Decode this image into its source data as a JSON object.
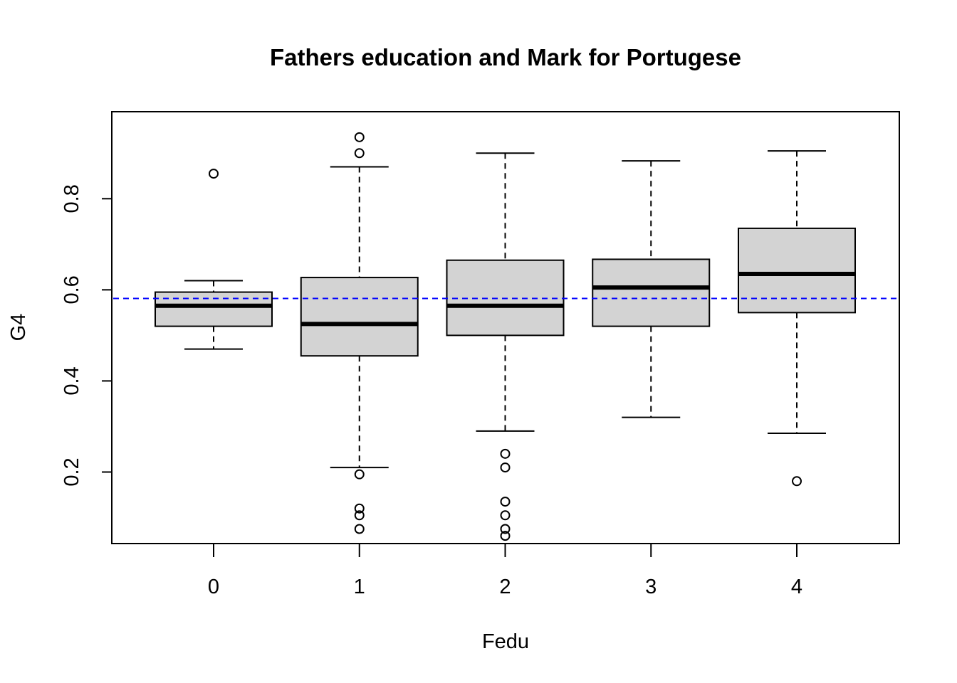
{
  "chart_data": {
    "type": "boxplot",
    "title": "Fathers education and Mark for Portugese",
    "xlabel": "Fedu",
    "ylabel": "G4",
    "categories": [
      "0",
      "1",
      "2",
      "3",
      "4"
    ],
    "y_ticks": [
      0.2,
      0.4,
      0.6,
      0.8
    ],
    "y_tick_labels": [
      "0.2",
      "0.4",
      "0.6",
      "0.8"
    ],
    "ylim": [
      0.043,
      0.991
    ],
    "grid": false,
    "reference_line": {
      "value": 0.581,
      "color": "#0000ff",
      "style": "dashed"
    },
    "box_fill": "#d3d3d3",
    "boxes": [
      {
        "category": "0",
        "whisker_low": 0.47,
        "q1": 0.52,
        "median": 0.565,
        "q3": 0.595,
        "whisker_high": 0.62,
        "outliers": [
          0.855
        ]
      },
      {
        "category": "1",
        "whisker_low": 0.21,
        "q1": 0.455,
        "median": 0.525,
        "q3": 0.627,
        "whisker_high": 0.87,
        "outliers": [
          0.935,
          0.9,
          0.195,
          0.12,
          0.105,
          0.075
        ]
      },
      {
        "category": "2",
        "whisker_low": 0.29,
        "q1": 0.5,
        "median": 0.565,
        "q3": 0.665,
        "whisker_high": 0.9,
        "outliers": [
          0.24,
          0.21,
          0.135,
          0.105,
          0.075,
          0.06
        ]
      },
      {
        "category": "3",
        "whisker_low": 0.32,
        "q1": 0.52,
        "median": 0.605,
        "q3": 0.667,
        "whisker_high": 0.883,
        "outliers": []
      },
      {
        "category": "4",
        "whisker_low": 0.285,
        "q1": 0.55,
        "median": 0.635,
        "q3": 0.735,
        "whisker_high": 0.905,
        "outliers": [
          0.18
        ]
      }
    ]
  }
}
